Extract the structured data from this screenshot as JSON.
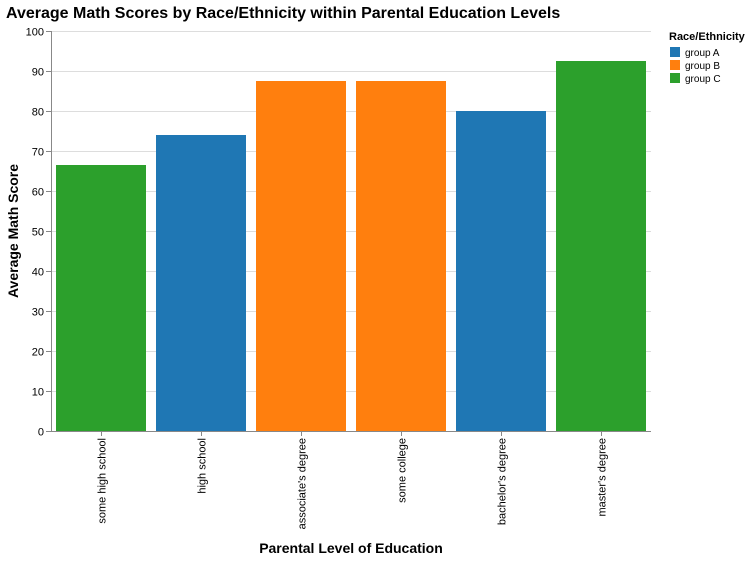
{
  "chart_data": {
    "type": "bar",
    "title": "Average Math Scores by Race/Ethnicity within Parental Education Levels",
    "xlabel": "Parental Level of Education",
    "ylabel": "Average Math Score",
    "ylim": [
      0,
      100
    ],
    "yticks": [
      0,
      10,
      20,
      30,
      40,
      50,
      60,
      70,
      80,
      90,
      100
    ],
    "grid": true,
    "categories": [
      "some high school",
      "high school",
      "associate's degree",
      "some college",
      "bachelor's degree",
      "master's degree"
    ],
    "values": [
      66.5,
      74,
      87.5,
      87.5,
      80,
      92.5
    ],
    "groups": [
      "group C",
      "group A",
      "group B",
      "group B",
      "group A",
      "group C"
    ],
    "legend": {
      "title": "Race/Ethnicity",
      "placement": "top-right",
      "entries": [
        {
          "label": "group A",
          "color": "#1f77b4"
        },
        {
          "label": "group B",
          "color": "#ff7f0e"
        },
        {
          "label": "group C",
          "color": "#2ca02c"
        }
      ]
    }
  }
}
